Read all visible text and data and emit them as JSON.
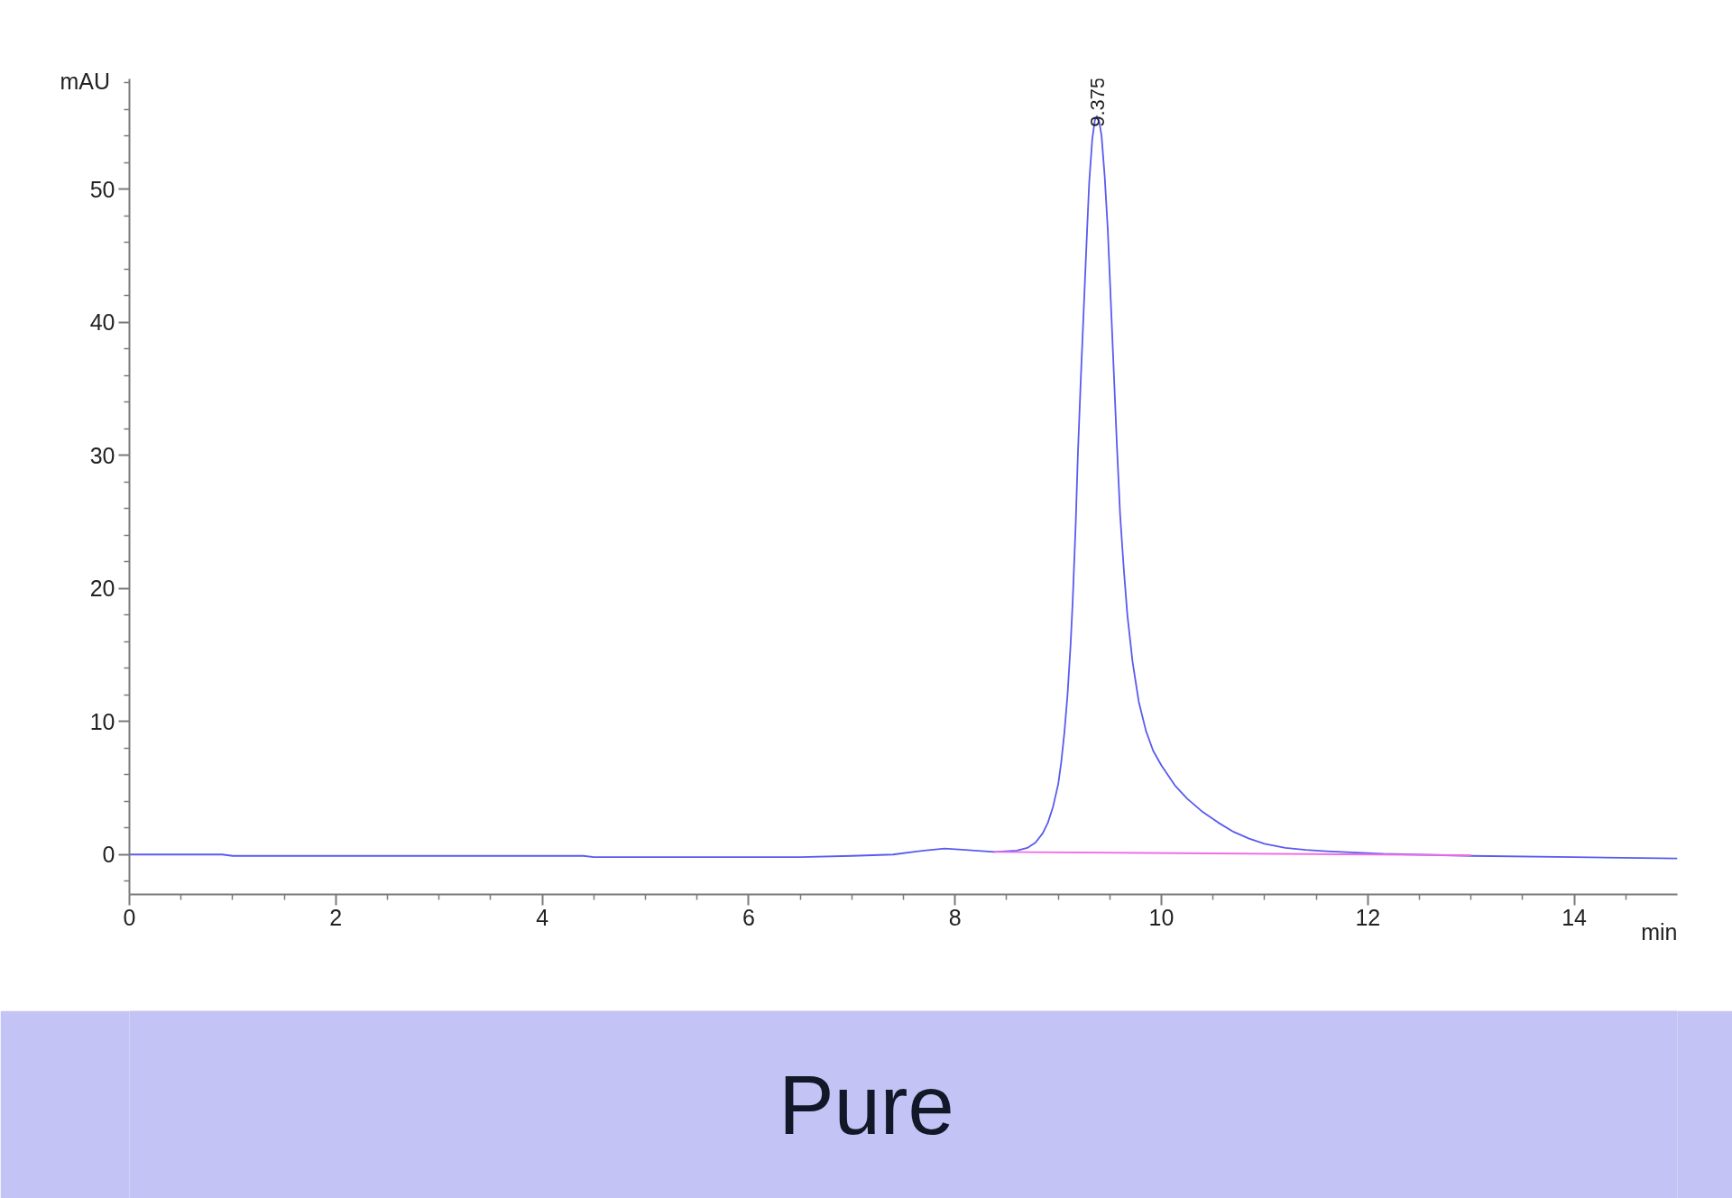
{
  "chart_data": {
    "type": "line",
    "title": "Pure",
    "xlabel": "min",
    "ylabel": "mAU",
    "xlim": [
      0,
      15
    ],
    "ylim": [
      -3,
      58.3
    ],
    "xticks": [
      0,
      {
        "value": 0.5,
        "label": null
      },
      {
        "value": 1,
        "label": null
      },
      {
        "value": 1.5,
        "label": null
      },
      2,
      {
        "value": 2.5,
        "label": null
      },
      {
        "value": 3,
        "label": null
      },
      {
        "value": 3.5,
        "label": null
      },
      4,
      {
        "value": 4.5,
        "label": null
      },
      {
        "value": 5,
        "label": null
      },
      {
        "value": 5.5,
        "label": null
      },
      6,
      {
        "value": 6.5,
        "label": null
      },
      {
        "value": 7,
        "label": null
      },
      {
        "value": 7.5,
        "label": null
      },
      8,
      {
        "value": 8.5,
        "label": null
      },
      {
        "value": 9,
        "label": null
      },
      {
        "value": 9.5,
        "label": null
      },
      10,
      {
        "value": 10.5,
        "label": null
      },
      {
        "value": 11,
        "label": null
      },
      {
        "value": 11.5,
        "label": null
      },
      12,
      {
        "value": 12.5,
        "label": null
      },
      {
        "value": 13,
        "label": null
      },
      {
        "value": 13.5,
        "label": null
      },
      14,
      {
        "value": 14.5,
        "label": null
      }
    ],
    "yticks": [
      {
        "value": -2,
        "label": null
      },
      0,
      {
        "value": 2,
        "label": null
      },
      {
        "value": 4,
        "label": null
      },
      {
        "value": 6,
        "label": null
      },
      {
        "value": 8,
        "label": null
      },
      10,
      {
        "value": 12,
        "label": null
      },
      {
        "value": 14,
        "label": null
      },
      {
        "value": 16,
        "label": null
      },
      {
        "value": 18,
        "label": null
      },
      20,
      {
        "value": 22,
        "label": null
      },
      {
        "value": 24,
        "label": null
      },
      {
        "value": 26,
        "label": null
      },
      {
        "value": 28,
        "label": null
      },
      30,
      {
        "value": 32,
        "label": null
      },
      {
        "value": 34,
        "label": null
      },
      {
        "value": 36,
        "label": null
      },
      {
        "value": 38,
        "label": null
      },
      40,
      {
        "value": 42,
        "label": null
      },
      {
        "value": 44,
        "label": null
      },
      {
        "value": 46,
        "label": null
      },
      {
        "value": 48,
        "label": null
      },
      50,
      {
        "value": 52,
        "label": null
      },
      {
        "value": 54,
        "label": null
      },
      {
        "value": 56,
        "label": null
      },
      {
        "value": 58,
        "label": null
      }
    ],
    "grid": false,
    "series": [
      {
        "color": "#5a5af0",
        "x": [
          0,
          0.9,
          1.0,
          4.4,
          4.5,
          6.5,
          7.0,
          7.4,
          7.7,
          7.9,
          8.1,
          8.38,
          8.6,
          8.7,
          8.78,
          8.85,
          8.9,
          8.95,
          9.0,
          9.03,
          9.06,
          9.09,
          9.12,
          9.14,
          9.17,
          9.19,
          9.22,
          9.25,
          9.28,
          9.3,
          9.33,
          9.355,
          9.375,
          9.395,
          9.42,
          9.45,
          9.48,
          9.51,
          9.54,
          9.57,
          9.6,
          9.635,
          9.67,
          9.72,
          9.78,
          9.85,
          9.92,
          10.0,
          10.13,
          10.25,
          10.4,
          10.55,
          10.7,
          10.85,
          11.0,
          11.2,
          11.4,
          11.6,
          12.15,
          13.0,
          14.0,
          15.0
        ],
        "values": [
          0,
          0,
          -0.1,
          -0.1,
          -0.2,
          -0.2,
          -0.1,
          0,
          0.3,
          0.45,
          0.35,
          0.2,
          0.3,
          0.5,
          0.9,
          1.6,
          2.4,
          3.6,
          5.3,
          7,
          9.2,
          12,
          15.8,
          19,
          25,
          30,
          36,
          41.5,
          47,
          50.5,
          53.8,
          55.2,
          55.5,
          55.2,
          54,
          51,
          47,
          41.5,
          36,
          30.5,
          25.5,
          21.5,
          18,
          14.5,
          11.5,
          9.3,
          7.8,
          6.7,
          5.2,
          4.2,
          3.2,
          2.4,
          1.7,
          1.2,
          0.8,
          0.5,
          0.35,
          0.25,
          0.05,
          -0.1,
          -0.2,
          -0.3
        ]
      },
      {
        "color": "#f06ee6",
        "x": [
          8.38,
          13.0
        ],
        "values": [
          0.2,
          -0.05
        ]
      }
    ],
    "annotations": [
      {
        "text": "9.375",
        "x": 9.375,
        "y": 55.5
      }
    ]
  }
}
